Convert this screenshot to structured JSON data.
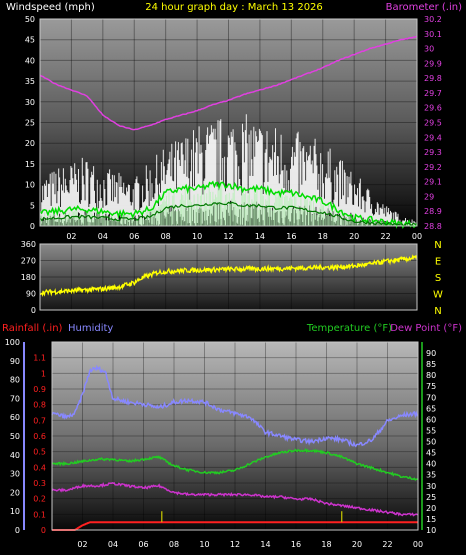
{
  "colors": {
    "background": "#000000",
    "frame": "#c8c8c8",
    "wind": "#ffffff",
    "wind_avg": "#00dd00",
    "wind_base": "#b8f0b8",
    "barometer": "#e040e0",
    "direction": "#ffff00",
    "rainfall": "#ff2020",
    "humidity": "#8888ff",
    "temperature": "#22cc22",
    "dewpoint": "#cc33cc",
    "label_white": "#ffffff",
    "label_yellow": "#ffff00"
  },
  "chart_data": [
    {
      "type": "line",
      "title": "24 hour graph day : March 13 2026",
      "ylabel": "Windspeed (mph)",
      "y2label": "Barometer (.in)",
      "x_ticks": [
        "02",
        "04",
        "06",
        "08",
        "10",
        "12",
        "14",
        "16",
        "18",
        "20",
        "22",
        "00"
      ],
      "xlim": [
        0,
        24
      ],
      "ylim": [
        0,
        50
      ],
      "y_ticks": [
        0,
        5,
        10,
        15,
        20,
        25,
        30,
        35,
        40,
        45,
        50
      ],
      "y2lim": [
        28.8,
        30.2
      ],
      "y2_ticks": [
        28.8,
        28.9,
        29.0,
        29.1,
        29.2,
        29.3,
        29.4,
        29.5,
        29.6,
        29.7,
        29.8,
        29.9,
        30.0,
        30.1,
        30.2
      ],
      "y2_tick_labels": [
        "28.8",
        "28.9",
        "29",
        "29.1",
        "29.2",
        "29.3",
        "29.4",
        "29.5",
        "29.6",
        "29.7",
        "29.8",
        "29.9",
        "30",
        "30.1",
        "30.2"
      ],
      "series": [
        {
          "name": "Windspeed",
          "axis": "y",
          "x": [
            0,
            1,
            2,
            3,
            4,
            5,
            6,
            7,
            8,
            9,
            10,
            11,
            12,
            13,
            14,
            15,
            16,
            17,
            18,
            19,
            20,
            21,
            22,
            23,
            24
          ],
          "values": [
            9,
            11,
            12,
            13,
            11,
            10,
            9,
            12,
            15,
            17,
            19,
            20,
            21,
            21,
            20,
            19,
            18,
            17,
            16,
            13,
            10,
            7,
            4,
            2,
            1
          ]
        },
        {
          "name": "Windspeed average",
          "axis": "y",
          "x": [
            0,
            1,
            2,
            3,
            4,
            5,
            6,
            7,
            8,
            9,
            10,
            11,
            12,
            13,
            14,
            15,
            16,
            17,
            18,
            19,
            20,
            21,
            22,
            23,
            24
          ],
          "values": [
            3,
            3.5,
            4,
            4,
            3.5,
            3,
            3,
            4,
            8,
            9,
            9,
            10,
            10,
            9,
            9,
            8,
            8,
            7,
            6,
            4,
            2,
            1.5,
            1,
            0.5,
            0.5
          ]
        },
        {
          "name": "Barometer",
          "axis": "y2",
          "x": [
            0,
            1,
            2,
            3,
            4,
            5,
            6,
            7,
            8,
            9,
            10,
            11,
            12,
            13,
            14,
            15,
            16,
            17,
            18,
            19,
            20,
            21,
            22,
            23,
            24
          ],
          "values": [
            29.82,
            29.76,
            29.72,
            29.68,
            29.55,
            29.48,
            29.45,
            29.48,
            29.52,
            29.55,
            29.58,
            29.62,
            29.65,
            29.69,
            29.72,
            29.75,
            29.79,
            29.83,
            29.87,
            29.92,
            29.96,
            30.0,
            30.03,
            30.06,
            30.08
          ]
        }
      ]
    },
    {
      "type": "scatter",
      "title": "",
      "x_ticks": [],
      "xlim": [
        0,
        24
      ],
      "ylim": [
        0,
        360
      ],
      "y_ticks": [
        0,
        90,
        180,
        270,
        360
      ],
      "right_labels": [
        "N",
        "W",
        "S",
        "E",
        "N"
      ],
      "series": [
        {
          "name": "Wind direction",
          "x": [
            0,
            1,
            2,
            3,
            4,
            5,
            6,
            6.5,
            7,
            7.5,
            8,
            9,
            10,
            11,
            12,
            13,
            14,
            15,
            16,
            17,
            18,
            19,
            20,
            21,
            22,
            23,
            24
          ],
          "values": [
            95,
            100,
            105,
            110,
            115,
            125,
            150,
            175,
            190,
            205,
            210,
            215,
            218,
            220,
            222,
            224,
            225,
            226,
            228,
            230,
            232,
            234,
            240,
            250,
            265,
            275,
            285
          ]
        }
      ]
    },
    {
      "type": "line",
      "ylabel": "Rainfall (.in)",
      "ylabel2": "Humidity",
      "y2label": "Temperature (°F)",
      "y2label2": "Dew Point (°F)",
      "x_ticks": [
        "02",
        "04",
        "06",
        "08",
        "10",
        "12",
        "14",
        "16",
        "18",
        "20",
        "22",
        "00"
      ],
      "xlim": [
        0,
        24
      ],
      "humidity_lim": [
        0,
        100
      ],
      "humidity_ticks": [
        0,
        10,
        20,
        30,
        40,
        50,
        60,
        70,
        80,
        90,
        100
      ],
      "rain_lim": [
        0,
        1.2
      ],
      "rain_ticks": [
        0,
        0.1,
        0.2,
        0.3,
        0.4,
        0.5,
        0.6,
        0.7,
        0.8,
        0.9,
        1.0,
        1.1
      ],
      "rain_tick_labels": [
        "0",
        "0.1",
        "0.2",
        "0.3",
        "0.4",
        "0.5",
        "0.6",
        "0.7",
        "0.8",
        "0.9",
        "1",
        "1.1"
      ],
      "temp_lim": [
        10,
        95
      ],
      "temp_ticks": [
        10,
        15,
        20,
        25,
        30,
        35,
        40,
        45,
        50,
        55,
        60,
        65,
        70,
        75,
        80,
        85,
        90
      ],
      "series": [
        {
          "name": "Humidity",
          "axis": "humidity",
          "x": [
            0,
            1,
            1.5,
            2,
            2.5,
            3,
            3.5,
            4,
            5,
            6,
            7,
            8,
            9,
            10,
            11,
            12,
            13,
            14,
            15,
            16,
            17,
            18,
            19,
            20,
            21,
            22,
            23,
            24
          ],
          "values": [
            62,
            60,
            62,
            72,
            85,
            86,
            84,
            70,
            68,
            67,
            65,
            68,
            69,
            68,
            64,
            62,
            60,
            52,
            50,
            48,
            47,
            49,
            48,
            45,
            48,
            58,
            61,
            62
          ]
        },
        {
          "name": "Temperature",
          "axis": "temp",
          "x": [
            0,
            1,
            2,
            3,
            4,
            5,
            6,
            7,
            8,
            9,
            10,
            11,
            12,
            13,
            14,
            15,
            16,
            17,
            18,
            19,
            20,
            21,
            22,
            23,
            24
          ],
          "values": [
            40,
            40,
            41,
            42,
            42,
            41,
            42,
            43,
            39,
            37,
            36,
            36,
            37,
            40,
            43,
            45,
            46,
            46,
            45,
            43,
            40,
            38,
            36,
            34,
            33
          ]
        },
        {
          "name": "Dew Point",
          "axis": "temp",
          "x": [
            0,
            1,
            2,
            3,
            4,
            5,
            6,
            7,
            8,
            9,
            10,
            11,
            12,
            13,
            14,
            15,
            16,
            17,
            18,
            19,
            20,
            21,
            22,
            23,
            24
          ],
          "values": [
            28,
            28,
            30,
            30,
            31,
            30,
            29,
            30,
            27,
            26,
            26,
            26,
            26,
            26,
            25,
            25,
            24,
            24,
            22,
            21,
            20,
            19,
            18,
            17,
            17
          ]
        },
        {
          "name": "Rainfall",
          "axis": "rain",
          "x": [
            0,
            1.5,
            2,
            2.5,
            24
          ],
          "values": [
            0,
            0,
            0.03,
            0.05,
            0.05
          ]
        }
      ]
    }
  ]
}
